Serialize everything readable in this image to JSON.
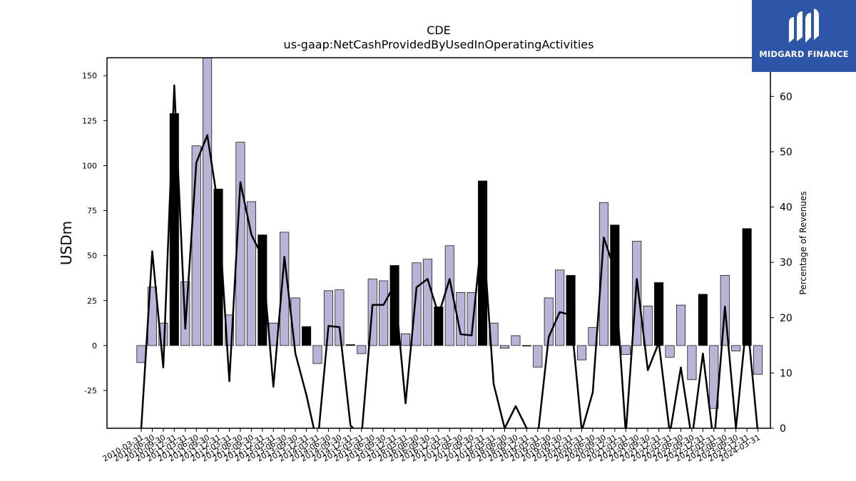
{
  "chart_data": {
    "type": "bar",
    "title": "CDE",
    "subtitle": "us-gaap:NetCashProvidedByUsedInOperatingActivities",
    "ylabel": "USDm",
    "y2label": "Percentage of Revenues",
    "ylim": [
      -46,
      160
    ],
    "y2lim": [
      0,
      67
    ],
    "yticks": [
      -25,
      0,
      25,
      50,
      75,
      100,
      125,
      150
    ],
    "y2ticks": [
      0,
      10,
      20,
      30,
      40,
      50,
      60
    ],
    "categories": [
      "2010-03-31",
      "2010-06-30",
      "2010-09-30",
      "2010-12-31",
      "2011-03-31",
      "2011-06-30",
      "2011-09-30",
      "2011-12-31",
      "2012-03-31",
      "2012-06-30",
      "2012-09-30",
      "2012-12-31",
      "2013-03-31",
      "2013-06-30",
      "2013-09-30",
      "2013-12-31",
      "2014-03-31",
      "2014-06-30",
      "2014-09-30",
      "2014-12-31",
      "2015-03-31",
      "2015-06-30",
      "2015-09-30",
      "2015-12-31",
      "2016-03-31",
      "2016-06-30",
      "2016-09-30",
      "2016-12-31",
      "2017-03-31",
      "2017-06-30",
      "2017-09-30",
      "2017-12-31",
      "2018-03-31",
      "2018-06-30",
      "2018-09-30",
      "2018-12-31",
      "2019-03-31",
      "2019-06-30",
      "2019-09-30",
      "2019-12-31",
      "2020-03-31",
      "2020-06-30",
      "2020-09-30",
      "2020-12-31",
      "2021-03-31",
      "2021-06-30",
      "2021-09-30",
      "2021-12-31",
      "2022-03-31",
      "2022-06-30",
      "2022-09-30",
      "2022-12-31",
      "2023-03-31",
      "2023-06-30",
      "2023-09-30",
      "2023-12-31",
      "2024-03-31"
    ],
    "series": [
      {
        "kind": "bar",
        "values": [
          -9.5,
          32.5,
          12.5,
          129,
          35.5,
          111,
          163,
          87,
          17,
          113,
          80,
          61.5,
          12.5,
          63,
          26.5,
          10.5,
          -10,
          30.5,
          31,
          0.5,
          -4.5,
          37,
          36,
          44.5,
          6.5,
          46,
          48,
          21.5,
          55.5,
          29.5,
          29.5,
          91.5,
          12.5,
          -1.5,
          5.5,
          0,
          -12,
          26.5,
          42,
          39,
          -8,
          10,
          79.5,
          67,
          -5,
          58,
          22,
          35,
          -6.5,
          22.5,
          -19,
          28.5,
          -35,
          39,
          -3,
          65,
          -16
        ],
        "q4_fill": "#000000",
        "other_fill": "#b8b4d8"
      },
      {
        "kind": "line",
        "axis": "right",
        "color": "#000000",
        "values": [
          0,
          32,
          11,
          62,
          18,
          48,
          53,
          40,
          8.5,
          44.5,
          35,
          31,
          7.5,
          31,
          13.5,
          6,
          -3,
          18.5,
          18.3,
          0.5,
          -1.5,
          22.3,
          22.3,
          26,
          4.5,
          25.5,
          27,
          20.5,
          27,
          17,
          16.8,
          36.5,
          8,
          0,
          4,
          0,
          -1.5,
          16.5,
          21,
          20.5,
          -0.5,
          6.5,
          34.5,
          28.5,
          -1,
          27,
          10.5,
          15.5,
          -1,
          11,
          -2,
          13.5,
          -3,
          22,
          0,
          20,
          -1
        ]
      }
    ]
  },
  "logo": {
    "text": "MIDGARD FINANCE",
    "bg_color": "#2d55a8"
  }
}
